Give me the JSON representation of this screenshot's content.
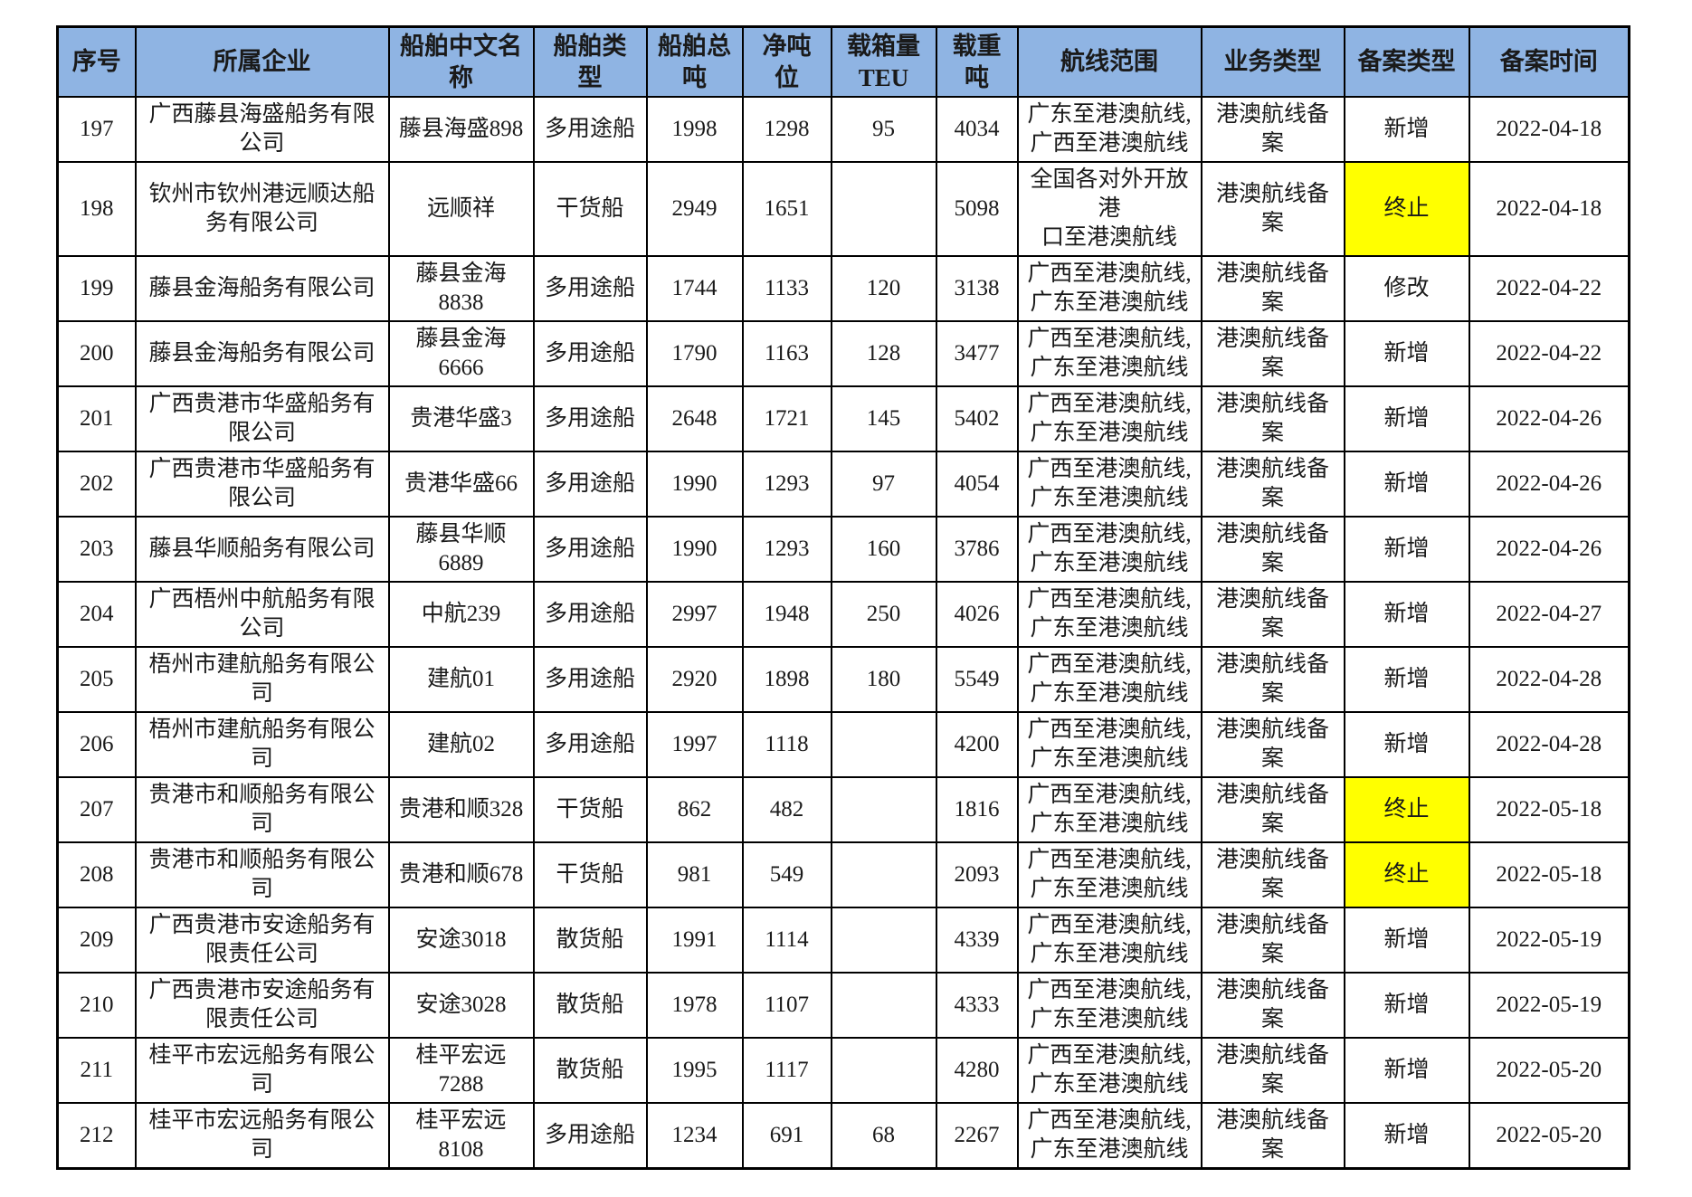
{
  "colors": {
    "header_bg": "#8FB4E3",
    "highlight_bg": "#FFFF00",
    "border": "#000000",
    "text": "#1A1A1A",
    "page_bg": "#FFFFFF"
  },
  "table": {
    "columns": [
      {
        "key": "seq",
        "label": "序号"
      },
      {
        "key": "company",
        "label": "所属企业"
      },
      {
        "key": "ship_name",
        "label": "船舶中文名称"
      },
      {
        "key": "ship_type",
        "label": "船舶类型"
      },
      {
        "key": "gross_tonnage",
        "label": "船舶总吨"
      },
      {
        "key": "net_tonnage",
        "label": "净吨位"
      },
      {
        "key": "teu",
        "label": "载箱量TEU"
      },
      {
        "key": "deadweight",
        "label": "载重吨"
      },
      {
        "key": "route",
        "label": "航线范围"
      },
      {
        "key": "business_type",
        "label": "业务类型"
      },
      {
        "key": "filing_type",
        "label": "备案类型"
      },
      {
        "key": "filing_date",
        "label": "备案时间"
      }
    ],
    "rows": [
      {
        "seq": "197",
        "company": "广西藤县海盛船务有限公司",
        "ship_name": "藤县海盛898",
        "ship_type": "多用途船",
        "gross_tonnage": "1998",
        "net_tonnage": "1298",
        "teu": "95",
        "deadweight": "4034",
        "route": "广东至港澳航线,\n广西至港澳航线",
        "business_type": "港澳航线备案",
        "filing_type": "新增",
        "filing_type_highlighted": false,
        "filing_date": "2022-04-18"
      },
      {
        "seq": "198",
        "company": "钦州市钦州港远顺达船务有限公司",
        "ship_name": "远顺祥",
        "ship_type": "干货船",
        "gross_tonnage": "2949",
        "net_tonnage": "1651",
        "teu": "",
        "deadweight": "5098",
        "route": "全国各对外开放港\n口至港澳航线",
        "business_type": "港澳航线备案",
        "filing_type": "终止",
        "filing_type_highlighted": true,
        "filing_date": "2022-04-18"
      },
      {
        "seq": "199",
        "company": "藤县金海船务有限公司",
        "ship_name": "藤县金海8838",
        "ship_type": "多用途船",
        "gross_tonnage": "1744",
        "net_tonnage": "1133",
        "teu": "120",
        "deadweight": "3138",
        "route": "广西至港澳航线,\n广东至港澳航线",
        "business_type": "港澳航线备案",
        "filing_type": "修改",
        "filing_type_highlighted": false,
        "filing_date": "2022-04-22"
      },
      {
        "seq": "200",
        "company": "藤县金海船务有限公司",
        "ship_name": "藤县金海6666",
        "ship_type": "多用途船",
        "gross_tonnage": "1790",
        "net_tonnage": "1163",
        "teu": "128",
        "deadweight": "3477",
        "route": "广西至港澳航线,\n广东至港澳航线",
        "business_type": "港澳航线备案",
        "filing_type": "新增",
        "filing_type_highlighted": false,
        "filing_date": "2022-04-22"
      },
      {
        "seq": "201",
        "company": "广西贵港市华盛船务有限公司",
        "ship_name": "贵港华盛3",
        "ship_type": "多用途船",
        "gross_tonnage": "2648",
        "net_tonnage": "1721",
        "teu": "145",
        "deadweight": "5402",
        "route": "广西至港澳航线,\n广东至港澳航线",
        "business_type": "港澳航线备案",
        "filing_type": "新增",
        "filing_type_highlighted": false,
        "filing_date": "2022-04-26"
      },
      {
        "seq": "202",
        "company": "广西贵港市华盛船务有限公司",
        "ship_name": "贵港华盛66",
        "ship_type": "多用途船",
        "gross_tonnage": "1990",
        "net_tonnage": "1293",
        "teu": "97",
        "deadweight": "4054",
        "route": "广西至港澳航线,\n广东至港澳航线",
        "business_type": "港澳航线备案",
        "filing_type": "新增",
        "filing_type_highlighted": false,
        "filing_date": "2022-04-26"
      },
      {
        "seq": "203",
        "company": "藤县华顺船务有限公司",
        "ship_name": "藤县华顺6889",
        "ship_type": "多用途船",
        "gross_tonnage": "1990",
        "net_tonnage": "1293",
        "teu": "160",
        "deadweight": "3786",
        "route": "广西至港澳航线,\n广东至港澳航线",
        "business_type": "港澳航线备案",
        "filing_type": "新增",
        "filing_type_highlighted": false,
        "filing_date": "2022-04-26"
      },
      {
        "seq": "204",
        "company": "广西梧州中航船务有限公司",
        "ship_name": "中航239",
        "ship_type": "多用途船",
        "gross_tonnage": "2997",
        "net_tonnage": "1948",
        "teu": "250",
        "deadweight": "4026",
        "route": "广西至港澳航线,\n广东至港澳航线",
        "business_type": "港澳航线备案",
        "filing_type": "新增",
        "filing_type_highlighted": false,
        "filing_date": "2022-04-27"
      },
      {
        "seq": "205",
        "company": "梧州市建航船务有限公司",
        "ship_name": "建航01",
        "ship_type": "多用途船",
        "gross_tonnage": "2920",
        "net_tonnage": "1898",
        "teu": "180",
        "deadweight": "5549",
        "route": "广西至港澳航线,\n广东至港澳航线",
        "business_type": "港澳航线备案",
        "filing_type": "新增",
        "filing_type_highlighted": false,
        "filing_date": "2022-04-28"
      },
      {
        "seq": "206",
        "company": "梧州市建航船务有限公司",
        "ship_name": "建航02",
        "ship_type": "多用途船",
        "gross_tonnage": "1997",
        "net_tonnage": "1118",
        "teu": "",
        "deadweight": "4200",
        "route": "广西至港澳航线,\n广东至港澳航线",
        "business_type": "港澳航线备案",
        "filing_type": "新增",
        "filing_type_highlighted": false,
        "filing_date": "2022-04-28"
      },
      {
        "seq": "207",
        "company": "贵港市和顺船务有限公司",
        "ship_name": "贵港和顺328",
        "ship_type": "干货船",
        "gross_tonnage": "862",
        "net_tonnage": "482",
        "teu": "",
        "deadweight": "1816",
        "route": "广西至港澳航线,\n广东至港澳航线",
        "business_type": "港澳航线备案",
        "filing_type": "终止",
        "filing_type_highlighted": true,
        "filing_date": "2022-05-18"
      },
      {
        "seq": "208",
        "company": "贵港市和顺船务有限公司",
        "ship_name": "贵港和顺678",
        "ship_type": "干货船",
        "gross_tonnage": "981",
        "net_tonnage": "549",
        "teu": "",
        "deadweight": "2093",
        "route": "广西至港澳航线,\n广东至港澳航线",
        "business_type": "港澳航线备案",
        "filing_type": "终止",
        "filing_type_highlighted": true,
        "filing_date": "2022-05-18"
      },
      {
        "seq": "209",
        "company": "广西贵港市安途船务有限责任公司",
        "ship_name": "安途3018",
        "ship_type": "散货船",
        "gross_tonnage": "1991",
        "net_tonnage": "1114",
        "teu": "",
        "deadweight": "4339",
        "route": "广西至港澳航线,\n广东至港澳航线",
        "business_type": "港澳航线备案",
        "filing_type": "新增",
        "filing_type_highlighted": false,
        "filing_date": "2022-05-19"
      },
      {
        "seq": "210",
        "company": "广西贵港市安途船务有限责任公司",
        "ship_name": "安途3028",
        "ship_type": "散货船",
        "gross_tonnage": "1978",
        "net_tonnage": "1107",
        "teu": "",
        "deadweight": "4333",
        "route": "广西至港澳航线,\n广东至港澳航线",
        "business_type": "港澳航线备案",
        "filing_type": "新增",
        "filing_type_highlighted": false,
        "filing_date": "2022-05-19"
      },
      {
        "seq": "211",
        "company": "桂平市宏远船务有限公司",
        "ship_name": "桂平宏远7288",
        "ship_type": "散货船",
        "gross_tonnage": "1995",
        "net_tonnage": "1117",
        "teu": "",
        "deadweight": "4280",
        "route": "广西至港澳航线,\n广东至港澳航线",
        "business_type": "港澳航线备案",
        "filing_type": "新增",
        "filing_type_highlighted": false,
        "filing_date": "2022-05-20"
      },
      {
        "seq": "212",
        "company": "桂平市宏远船务有限公司",
        "ship_name": "桂平宏远8108",
        "ship_type": "多用途船",
        "gross_tonnage": "1234",
        "net_tonnage": "691",
        "teu": "68",
        "deadweight": "2267",
        "route": "广西至港澳航线,\n广东至港澳航线",
        "business_type": "港澳航线备案",
        "filing_type": "新增",
        "filing_type_highlighted": false,
        "filing_date": "2022-05-20"
      }
    ]
  }
}
